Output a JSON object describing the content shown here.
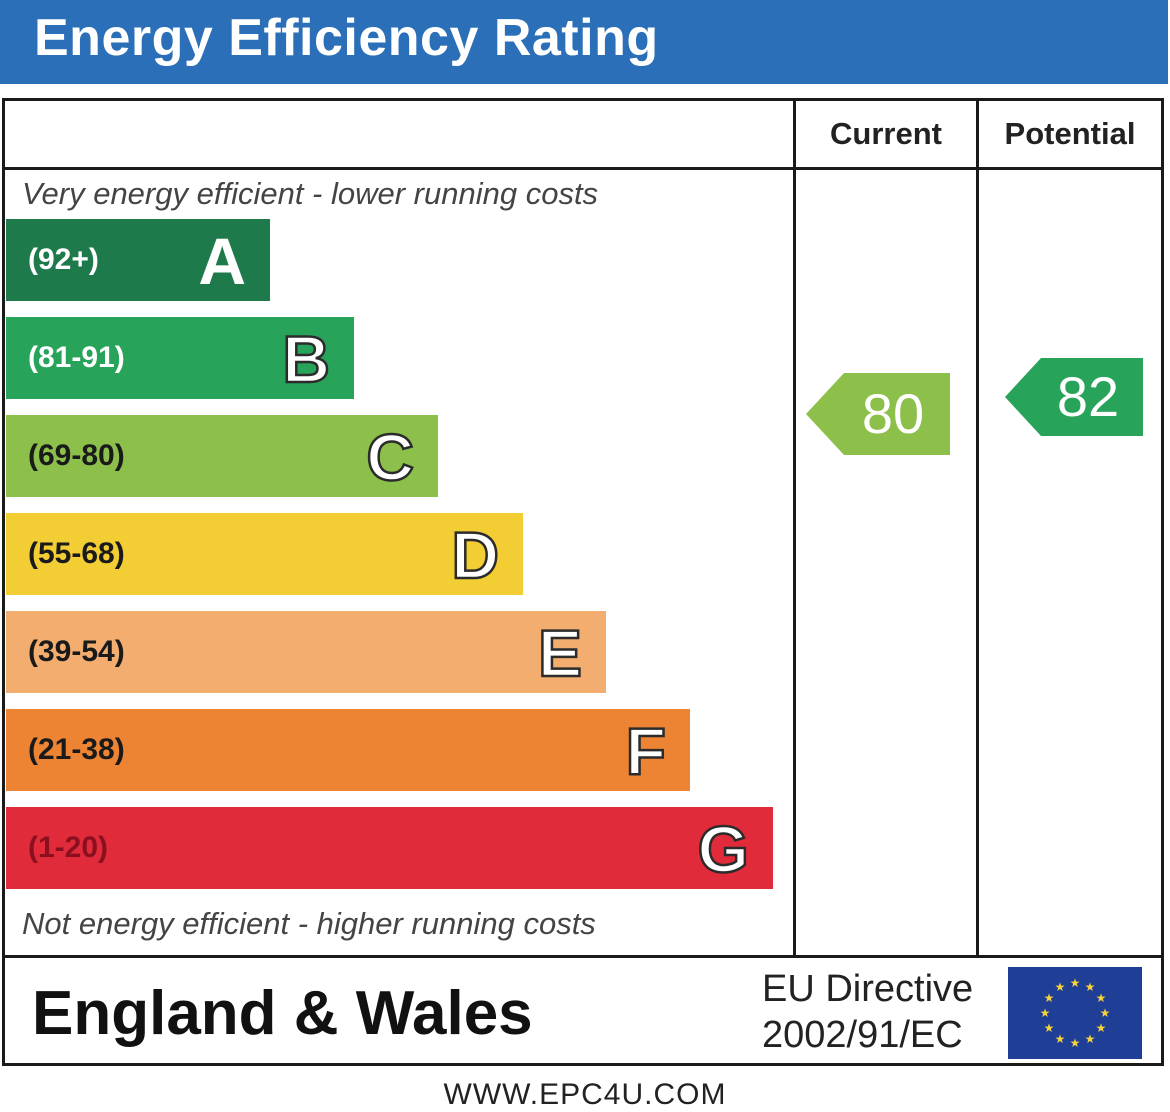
{
  "title": "Energy Efficiency Rating",
  "columns": {
    "current": "Current",
    "potential": "Potential"
  },
  "top_note": "Very energy efficient - lower running costs",
  "bottom_note": "Not energy efficient - higher running costs",
  "bands": [
    {
      "letter": "A",
      "range": "(92+)",
      "color": "#1f7a4b",
      "text_color": "#ffffff"
    },
    {
      "letter": "B",
      "range": "(81-91)",
      "color": "#27a35a",
      "text_color": "#ffffff"
    },
    {
      "letter": "C",
      "range": "(69-80)",
      "color": "#8cc04a",
      "text_color": "#1a1a1a"
    },
    {
      "letter": "D",
      "range": "(55-68)",
      "color": "#f3cd34",
      "text_color": "#1a1a1a"
    },
    {
      "letter": "E",
      "range": "(39-54)",
      "color": "#f2ad6f",
      "text_color": "#1a1a1a"
    },
    {
      "letter": "F",
      "range": "(21-38)",
      "color": "#ec8434",
      "text_color": "#1a1a1a"
    },
    {
      "letter": "G",
      "range": "(1-20)",
      "color": "#e12b3a",
      "text_color": "#8a1020"
    }
  ],
  "chart_data": {
    "type": "bar",
    "categories": [
      "A",
      "B",
      "C",
      "D",
      "E",
      "F",
      "G"
    ],
    "ranges": [
      "(92+)",
      "(81-91)",
      "(69-80)",
      "(55-68)",
      "(39-54)",
      "(21-38)",
      "(1-20)"
    ],
    "current": {
      "value": 80,
      "band": "C",
      "color": "#8cc04a"
    },
    "potential": {
      "value": 82,
      "band": "B",
      "color": "#27a35a"
    }
  },
  "footer": {
    "region": "England & Wales",
    "directive_line1": "EU Directive",
    "directive_line2": "2002/91/EC",
    "flag_icon": "eu-flag-icon"
  },
  "website": "WWW.EPC4U.COM"
}
